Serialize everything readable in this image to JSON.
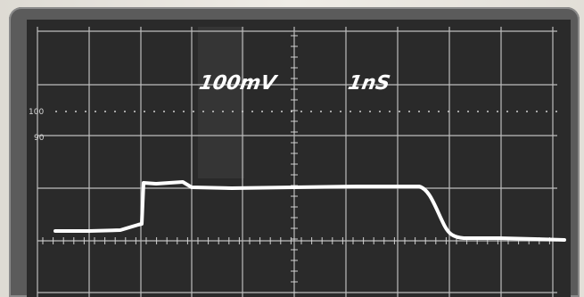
{
  "oscilloscope": {
    "volts_per_div": "100mV",
    "time_per_div": "1nS",
    "scale_100": "100",
    "scale_90": "90"
  },
  "colors": {
    "trace": "#ffffff",
    "graticule": "#bdbdbd",
    "screen": "#2a2a2a",
    "bezel": "#5b5b5b"
  }
}
